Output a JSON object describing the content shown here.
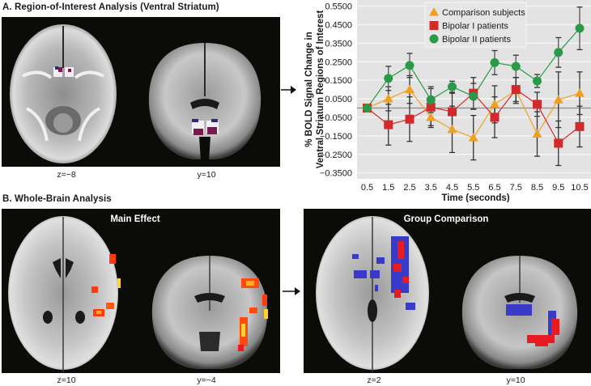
{
  "panel_a": {
    "title": "A. Region-of-Interest Analysis (Ventral Striatum)",
    "slices": [
      {
        "label": "z=−8",
        "view": "axial"
      },
      {
        "label": "y=10",
        "view": "coronal"
      }
    ]
  },
  "panel_b": {
    "title": "B. Whole-Brain Analysis",
    "left_box": {
      "title": "Main Effect",
      "slices": [
        {
          "label": "z=10",
          "view": "axial"
        },
        {
          "label": "y=−4",
          "view": "coronal"
        }
      ]
    },
    "right_box": {
      "title": "Group Comparison",
      "slices": [
        {
          "label": "z=2",
          "view": "axial"
        },
        {
          "label": "y=10",
          "view": "coronal"
        }
      ]
    }
  },
  "colors": {
    "comparison": "#f0a020",
    "bipolar1": "#d22a2a",
    "bipolar2": "#2a9a48",
    "plot_bg": "#e3e3e3",
    "activation_hot": "#ff3a10",
    "activation_warm": "#ffd030",
    "group_blue": "#3a3ac8",
    "group_red": "#e81c20",
    "roi_white": "#f4eef4",
    "roi_purple": "#7a1850",
    "roi_navy": "#2a2a7a"
  },
  "chart_data": {
    "type": "line",
    "title": "",
    "xlabel": "Time (seconds)",
    "ylabel_line1": "% BOLD Signal Change in",
    "ylabel_line2": "Ventral Striatum Regions of Interest",
    "ylabel": "% BOLD Signal Change in Ventral Striatum Regions of Interest",
    "x": [
      0.5,
      1.5,
      2.5,
      3.5,
      4.5,
      5.5,
      6.5,
      7.5,
      8.5,
      9.5,
      10.5
    ],
    "x_tick_labels": [
      "0.5",
      "1.5",
      "2.5",
      "3.5",
      "4.5",
      "5.5",
      "6.5",
      "7.5",
      "8.5",
      "9.5",
      "10.5"
    ],
    "y_tick_values": [
      0.55,
      0.45,
      0.35,
      0.25,
      0.15,
      0.05,
      -0.05,
      -0.15,
      -0.25,
      -0.35
    ],
    "y_tick_labels": [
      "0.5500",
      "0.4500",
      "0.3500",
      "0.2500",
      "0.1500",
      "0.0500",
      "−0.0500",
      "−0.1500",
      "−0.2500",
      "−0.3500"
    ],
    "ylim": [
      -0.39,
      0.58
    ],
    "grid": true,
    "legend_position": "upper center",
    "series": [
      {
        "name": "Comparison subjects",
        "marker": "triangle",
        "color_key": "comparison",
        "values": [
          0.0,
          0.05,
          0.1,
          -0.05,
          -0.115,
          -0.16,
          0.02,
          0.095,
          -0.14,
          0.045,
          0.08
        ],
        "err": [
          0.0,
          0.065,
          0.075,
          0.055,
          0.125,
          0.12,
          0.1,
          0.07,
          0.12,
          0.15,
          0.115
        ]
      },
      {
        "name": "Bipolar I patients",
        "marker": "square",
        "color_key": "bipolar1",
        "values": [
          0.0,
          -0.09,
          -0.06,
          0.005,
          -0.02,
          0.08,
          -0.05,
          0.1,
          0.02,
          -0.19,
          -0.1
        ],
        "err": [
          0.0,
          0.11,
          0.12,
          0.1,
          0.1,
          0.085,
          0.11,
          0.065,
          0.065,
          0.12,
          0.11
        ]
      },
      {
        "name": "Bipolar II patients",
        "marker": "circle",
        "color_key": "bipolar2",
        "values": [
          0.0,
          0.16,
          0.23,
          0.045,
          0.115,
          0.063,
          0.245,
          0.225,
          0.146,
          0.3,
          0.43
        ],
        "err": [
          0.0,
          0.065,
          0.065,
          0.07,
          0.03,
          0.07,
          0.065,
          0.06,
          0.035,
          0.08,
          0.115
        ]
      }
    ]
  }
}
